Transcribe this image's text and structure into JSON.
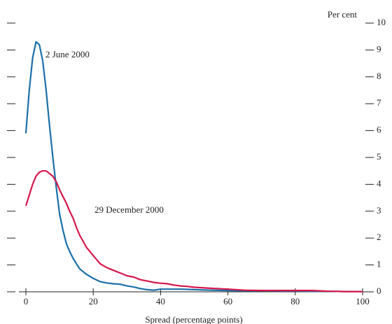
{
  "chart_data": {
    "type": "line",
    "y_label": "Per cent",
    "x_label": "Spread (percentage points)",
    "x": [
      0,
      1,
      2,
      3,
      4,
      5,
      6,
      7,
      8,
      9,
      10,
      11,
      12,
      13,
      14,
      15,
      16,
      18,
      20,
      22,
      24,
      26,
      28,
      30,
      32,
      34,
      36,
      38,
      40,
      42,
      44,
      46,
      48,
      50,
      55,
      60,
      65,
      70,
      75,
      80,
      85,
      90,
      95,
      100
    ],
    "series": [
      {
        "name": "2 June 2000",
        "color": "#1a6fa8",
        "values": [
          5.9,
          7.5,
          8.7,
          9.3,
          9.2,
          8.6,
          7.5,
          6.2,
          5.0,
          3.9,
          2.9,
          2.3,
          1.8,
          1.5,
          1.25,
          1.05,
          0.85,
          0.65,
          0.5,
          0.38,
          0.33,
          0.3,
          0.28,
          0.22,
          0.18,
          0.12,
          0.08,
          0.06,
          0.1,
          0.1,
          0.1,
          0.1,
          0.09,
          0.08,
          0.06,
          0.05,
          0.04,
          0.04,
          0.03,
          0.03,
          0.02,
          0.02,
          0.01,
          0.01
        ]
      },
      {
        "name": "29 December 2000",
        "color": "#d6174a",
        "values": [
          3.2,
          3.6,
          4.0,
          4.3,
          4.45,
          4.5,
          4.5,
          4.4,
          4.3,
          4.1,
          3.8,
          3.55,
          3.3,
          3.0,
          2.75,
          2.4,
          2.1,
          1.65,
          1.35,
          1.05,
          0.9,
          0.8,
          0.7,
          0.6,
          0.55,
          0.45,
          0.4,
          0.35,
          0.32,
          0.3,
          0.25,
          0.22,
          0.2,
          0.17,
          0.13,
          0.1,
          0.06,
          0.05,
          0.05,
          0.05,
          0.05,
          0.02,
          0.01,
          0.01
        ]
      }
    ],
    "xlim": [
      0,
      100
    ],
    "xticks": [
      0,
      20,
      40,
      60,
      80,
      100
    ],
    "ylim": [
      0,
      10
    ],
    "yticks": [
      0,
      1,
      2,
      3,
      4,
      5,
      6,
      7,
      8,
      9,
      10
    ]
  }
}
